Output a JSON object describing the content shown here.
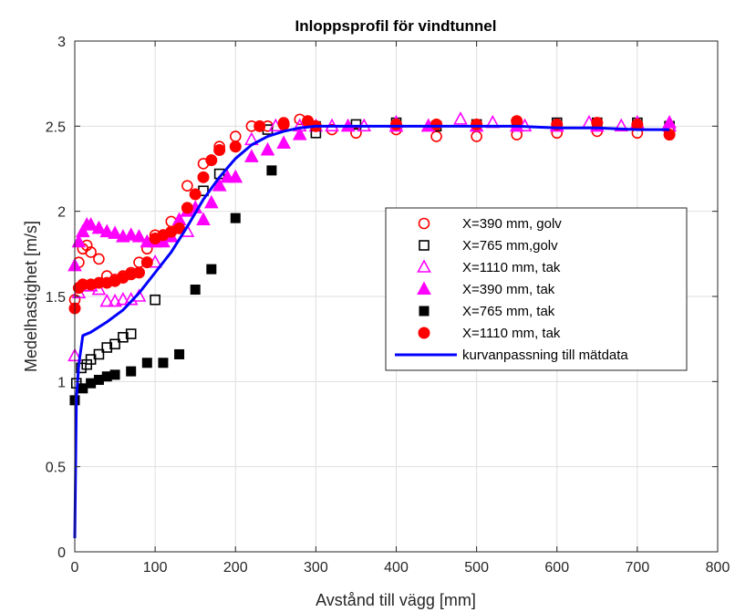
{
  "chart_data": {
    "type": "scatter",
    "title": "Inloppsprofil för vindtunnel",
    "xlabel": "Avstånd till vägg [mm]",
    "ylabel": "Medelhastighet [m/s]",
    "xlim": [
      0,
      800
    ],
    "ylim": [
      0,
      3
    ],
    "xticks": [
      0,
      100,
      200,
      300,
      400,
      500,
      600,
      700,
      800
    ],
    "yticks": [
      0,
      0.5,
      1,
      1.5,
      2,
      2.5,
      3
    ],
    "xtick_labels": [
      "0",
      "100",
      "200",
      "300",
      "400",
      "500",
      "600",
      "700",
      "800"
    ],
    "ytick_labels": [
      "0",
      "0.5",
      "1",
      "1.5",
      "2",
      "2.5",
      "3"
    ],
    "grid": true,
    "legend_position": "center-right",
    "series": [
      {
        "name": "X=390 mm, golv",
        "marker": "circle-open",
        "color": "#ff0000",
        "x": [
          0,
          5,
          10,
          15,
          20,
          30,
          40,
          50,
          60,
          70,
          80,
          90,
          100,
          120,
          140,
          160,
          180,
          200,
          220,
          240,
          260,
          280,
          300,
          320,
          350,
          400,
          450,
          500,
          550,
          600,
          650,
          700,
          740
        ],
        "y": [
          1.48,
          1.7,
          1.78,
          1.8,
          1.76,
          1.72,
          1.62,
          1.6,
          1.62,
          1.64,
          1.7,
          1.78,
          1.86,
          1.94,
          2.15,
          2.28,
          2.38,
          2.44,
          2.5,
          2.5,
          2.52,
          2.54,
          2.5,
          2.48,
          2.46,
          2.48,
          2.44,
          2.44,
          2.45,
          2.46,
          2.47,
          2.46,
          2.47
        ]
      },
      {
        "name": "X=765 mm,golv",
        "marker": "square-open",
        "color": "#000000",
        "x": [
          2,
          8,
          15,
          20,
          30,
          40,
          50,
          60,
          70,
          100,
          160,
          180,
          240,
          300,
          350,
          400,
          450,
          500,
          550,
          600,
          650,
          700,
          740
        ],
        "y": [
          0.99,
          1.08,
          1.1,
          1.13,
          1.16,
          1.2,
          1.22,
          1.26,
          1.28,
          1.48,
          2.12,
          2.22,
          2.48,
          2.46,
          2.51,
          2.52,
          2.5,
          2.51,
          2.5,
          2.52,
          2.52,
          2.52,
          2.5
        ]
      },
      {
        "name": "X=1110 mm, tak",
        "marker": "triangle-open",
        "color": "#ff00ff",
        "x": [
          0,
          5,
          10,
          20,
          30,
          40,
          50,
          60,
          70,
          80,
          100,
          140,
          180,
          220,
          250,
          280,
          320,
          360,
          400,
          440,
          480,
          520,
          560,
          600,
          640,
          680,
          740
        ],
        "y": [
          1.15,
          1.52,
          1.56,
          1.56,
          1.54,
          1.47,
          1.47,
          1.48,
          1.48,
          1.5,
          1.7,
          1.88,
          2.15,
          2.42,
          2.5,
          2.5,
          2.5,
          2.5,
          2.52,
          2.5,
          2.54,
          2.52,
          2.5,
          2.5,
          2.52,
          2.5,
          2.5
        ]
      },
      {
        "name": "X=390 mm, tak",
        "marker": "triangle-filled",
        "color": "#ff00ff",
        "x": [
          0,
          5,
          10,
          15,
          20,
          30,
          40,
          50,
          60,
          70,
          80,
          90,
          100,
          110,
          120,
          130,
          140,
          150,
          160,
          170,
          180,
          190,
          200,
          220,
          240,
          260,
          280,
          300,
          340,
          400,
          440,
          500,
          550,
          600,
          650,
          700,
          740
        ],
        "y": [
          1.68,
          1.82,
          1.88,
          1.92,
          1.92,
          1.9,
          1.88,
          1.87,
          1.85,
          1.86,
          1.85,
          1.82,
          1.82,
          1.82,
          1.85,
          1.95,
          2.0,
          2.02,
          1.95,
          2.05,
          2.15,
          2.2,
          2.2,
          2.32,
          2.36,
          2.4,
          2.45,
          2.5,
          2.5,
          2.5,
          2.5,
          2.5,
          2.5,
          2.5,
          2.5,
          2.52,
          2.52
        ]
      },
      {
        "name": "X=765 mm, tak",
        "marker": "square-filled",
        "color": "#000000",
        "x": [
          0,
          10,
          20,
          30,
          40,
          50,
          70,
          90,
          110,
          130,
          150,
          170,
          200,
          245,
          300
        ],
        "y": [
          0.89,
          0.96,
          0.99,
          1.01,
          1.03,
          1.04,
          1.06,
          1.11,
          1.11,
          1.16,
          1.54,
          1.66,
          1.96,
          2.24,
          2.5
        ]
      },
      {
        "name": "X=1110 mm, tak",
        "marker": "circle-filled",
        "color": "#ff0000",
        "x": [
          0,
          5,
          10,
          20,
          30,
          40,
          50,
          60,
          70,
          80,
          90,
          100,
          110,
          120,
          130,
          140,
          150,
          160,
          170,
          180,
          200,
          230,
          260,
          290,
          300,
          400,
          450,
          500,
          550,
          600,
          650,
          700,
          740
        ],
        "y": [
          1.43,
          1.55,
          1.57,
          1.57,
          1.58,
          1.58,
          1.59,
          1.61,
          1.63,
          1.64,
          1.7,
          1.84,
          1.86,
          1.88,
          1.9,
          2.02,
          2.1,
          2.2,
          2.3,
          2.36,
          2.38,
          2.5,
          2.51,
          2.53,
          2.5,
          2.51,
          2.51,
          2.51,
          2.53,
          2.51,
          2.52,
          2.51,
          2.45
        ]
      },
      {
        "name": "kurvanpassning till mätdata",
        "marker": "line",
        "color": "#0000ff",
        "x": [
          0,
          2,
          5,
          10,
          20,
          40,
          60,
          80,
          100,
          120,
          140,
          160,
          180,
          200,
          220,
          240,
          260,
          280,
          300,
          350,
          400,
          450,
          500,
          550,
          600,
          650,
          700,
          740
        ],
        "y": [
          0.08,
          0.9,
          1.1,
          1.27,
          1.29,
          1.35,
          1.42,
          1.52,
          1.64,
          1.76,
          1.91,
          2.07,
          2.2,
          2.31,
          2.39,
          2.44,
          2.47,
          2.49,
          2.5,
          2.5,
          2.5,
          2.5,
          2.5,
          2.5,
          2.49,
          2.49,
          2.48,
          2.48
        ]
      }
    ]
  }
}
